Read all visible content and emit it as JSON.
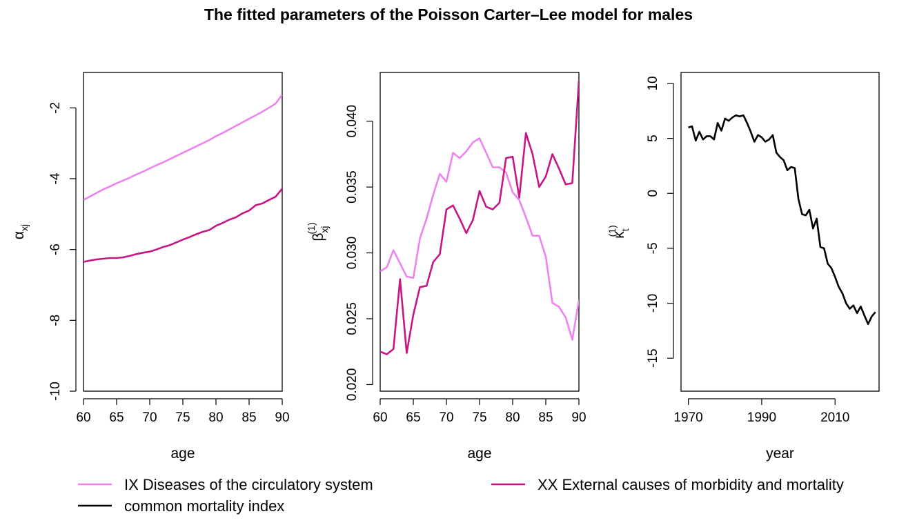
{
  "title": "The fitted parameters of the Poisson Carter–Lee model for males",
  "colors": {
    "circulatory": "#EE82EE",
    "external": "#C71585",
    "common": "#000000"
  },
  "legend": {
    "items": [
      {
        "label": "IX Diseases of the circulatory system",
        "color": "#EE82EE"
      },
      {
        "label": "XX External causes of morbidity and mortality",
        "color": "#C71585"
      },
      {
        "label": "common mortality index",
        "color": "#000000"
      }
    ]
  },
  "chart_data": [
    {
      "type": "line",
      "xlabel": "age",
      "ylabel": "α",
      "ylabel_sub": "xj",
      "xlim": [
        60,
        90
      ],
      "ylim": [
        -10,
        -1
      ],
      "xticks": [
        60,
        65,
        70,
        75,
        80,
        85,
        90
      ],
      "yticks": [
        -10,
        -8,
        -6,
        -4,
        -2
      ],
      "x": [
        60,
        61,
        62,
        63,
        64,
        65,
        66,
        67,
        68,
        69,
        70,
        71,
        72,
        73,
        74,
        75,
        76,
        77,
        78,
        79,
        80,
        81,
        82,
        83,
        84,
        85,
        86,
        87,
        88,
        89,
        90
      ],
      "series": [
        {
          "name": "IX Diseases of the circulatory system",
          "color": "#EE82EE",
          "values": [
            -4.6,
            -4.5,
            -4.4,
            -4.3,
            -4.22,
            -4.13,
            -4.05,
            -3.97,
            -3.88,
            -3.8,
            -3.71,
            -3.62,
            -3.54,
            -3.45,
            -3.36,
            -3.27,
            -3.18,
            -3.09,
            -3.0,
            -2.91,
            -2.8,
            -2.71,
            -2.61,
            -2.51,
            -2.41,
            -2.31,
            -2.21,
            -2.11,
            -2.0,
            -1.88,
            -1.63
          ]
        },
        {
          "name": "XX External causes of morbidity and mortality",
          "color": "#C71585",
          "values": [
            -6.35,
            -6.31,
            -6.28,
            -6.26,
            -6.24,
            -6.24,
            -6.22,
            -6.18,
            -6.13,
            -6.09,
            -6.06,
            -6.0,
            -5.93,
            -5.88,
            -5.8,
            -5.72,
            -5.65,
            -5.57,
            -5.5,
            -5.45,
            -5.33,
            -5.25,
            -5.16,
            -5.09,
            -4.98,
            -4.9,
            -4.75,
            -4.7,
            -4.6,
            -4.51,
            -4.28
          ]
        }
      ]
    },
    {
      "type": "line",
      "xlabel": "age",
      "ylabel": "β",
      "ylabel_sub": "xj",
      "ylabel_sup": "(1)",
      "xlim": [
        60,
        90
      ],
      "ylim": [
        0.0195,
        0.0437
      ],
      "xticks": [
        60,
        65,
        70,
        75,
        80,
        85,
        90
      ],
      "yticks": [
        0.02,
        0.025,
        0.03,
        0.035,
        0.04
      ],
      "ytick_labels": [
        "0.020",
        "0.025",
        "0.030",
        "0.035",
        "0.040"
      ],
      "x": [
        60,
        61,
        62,
        63,
        64,
        65,
        66,
        67,
        68,
        69,
        70,
        71,
        72,
        73,
        74,
        75,
        76,
        77,
        78,
        79,
        80,
        81,
        82,
        83,
        84,
        85,
        86,
        87,
        88,
        89,
        90
      ],
      "series": [
        {
          "name": "IX Diseases of the circulatory system",
          "color": "#EE82EE",
          "values": [
            0.0286,
            0.0289,
            0.0302,
            0.0292,
            0.0282,
            0.0281,
            0.0311,
            0.0326,
            0.0344,
            0.036,
            0.0354,
            0.0376,
            0.0372,
            0.0377,
            0.0384,
            0.0387,
            0.0376,
            0.0365,
            0.0365,
            0.0361,
            0.0346,
            0.034,
            0.0327,
            0.0313,
            0.0313,
            0.0297,
            0.0262,
            0.0259,
            0.0251,
            0.0234,
            0.0264
          ]
        },
        {
          "name": "XX External causes of morbidity and mortality",
          "color": "#C71585",
          "values": [
            0.0225,
            0.0223,
            0.0227,
            0.028,
            0.0224,
            0.0253,
            0.0274,
            0.0275,
            0.0293,
            0.0299,
            0.0333,
            0.0336,
            0.0326,
            0.0315,
            0.0325,
            0.0347,
            0.0335,
            0.0333,
            0.0338,
            0.0372,
            0.0373,
            0.0342,
            0.0391,
            0.0375,
            0.035,
            0.0358,
            0.0375,
            0.0364,
            0.0352,
            0.0353,
            0.0431
          ]
        }
      ]
    },
    {
      "type": "line",
      "xlabel": "year",
      "ylabel": "κ",
      "ylabel_sub": "t",
      "ylabel_sup": "(1)",
      "xlim": [
        1968,
        2022
      ],
      "ylim": [
        -18,
        11
      ],
      "xticks": [
        1970,
        1990,
        2010
      ],
      "yticks": [
        -15,
        -10,
        -5,
        0,
        5,
        10
      ],
      "x": [
        1970,
        1971,
        1972,
        1973,
        1974,
        1975,
        1976,
        1977,
        1978,
        1979,
        1980,
        1981,
        1982,
        1983,
        1984,
        1985,
        1986,
        1987,
        1988,
        1989,
        1990,
        1991,
        1992,
        1993,
        1994,
        1995,
        1996,
        1997,
        1998,
        1999,
        2000,
        2001,
        2002,
        2003,
        2004,
        2005,
        2006,
        2007,
        2008,
        2009,
        2010,
        2011,
        2012,
        2013,
        2014,
        2015,
        2016,
        2017,
        2018,
        2019,
        2020,
        2021
      ],
      "series": [
        {
          "name": "common mortality index",
          "color": "#000000",
          "values": [
            6.0,
            6.1,
            4.8,
            5.6,
            4.9,
            5.2,
            5.2,
            4.9,
            6.4,
            5.7,
            6.8,
            6.6,
            6.9,
            7.1,
            7.0,
            7.1,
            6.4,
            5.6,
            4.7,
            5.3,
            5.1,
            4.7,
            4.9,
            5.3,
            3.7,
            3.3,
            3.0,
            2.1,
            2.4,
            2.3,
            -0.5,
            -1.9,
            -2.0,
            -1.5,
            -3.2,
            -2.3,
            -4.9,
            -5.0,
            -6.4,
            -6.8,
            -7.6,
            -8.5,
            -9.1,
            -10.0,
            -10.5,
            -10.2,
            -10.9,
            -10.3,
            -11.1,
            -11.9,
            -11.2,
            -10.8
          ]
        }
      ]
    }
  ]
}
